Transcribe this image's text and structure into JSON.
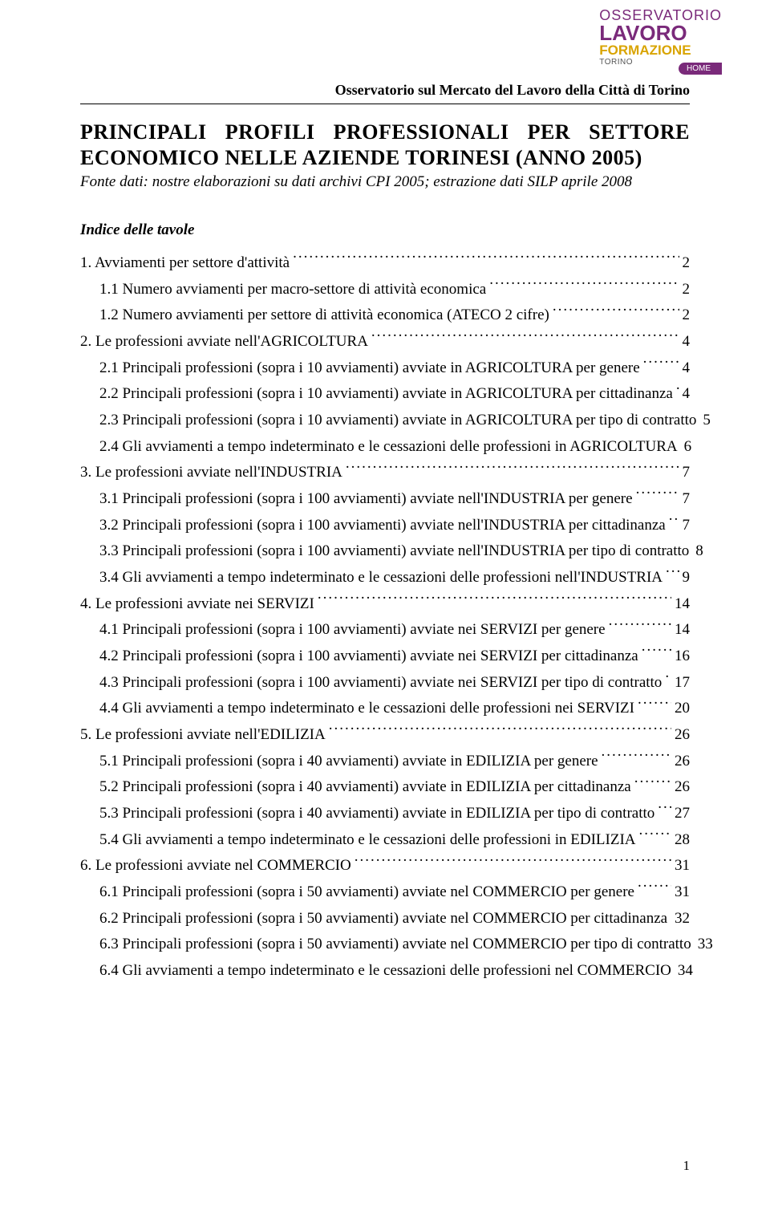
{
  "logo": {
    "line1": "OSSERVATORIO",
    "line2": "LAVORO",
    "line3": "FORMAZIONE",
    "torino": "TORINO"
  },
  "home_label": "HOME",
  "subheader": "Osservatorio sul Mercato del Lavoro della Città di Torino",
  "title_line1": "PRINCIPALI PROFILI PROFESSIONALI PER SETTORE",
  "title_line2": "ECONOMICO NELLE AZIENDE TORINESI (ANNO 2005)",
  "source": "Fonte dati: nostre elaborazioni su dati archivi CPI 2005; estrazione dati SILP aprile 2008",
  "toc_heading": "Indice delle tavole",
  "toc": [
    {
      "label": "1. Avviamenti per settore d'attività",
      "page": "2",
      "indent": false
    },
    {
      "label": "1.1 Numero avviamenti per macro-settore di attività economica",
      "page": "2",
      "indent": true
    },
    {
      "label": "1.2 Numero avviamenti per settore di attività economica (ATECO 2 cifre)",
      "page": "2",
      "indent": true
    },
    {
      "label": "2. Le professioni avviate nell'AGRICOLTURA",
      "page": "4",
      "indent": false
    },
    {
      "label": "2.1 Principali professioni (sopra i 10 avviamenti) avviate in AGRICOLTURA per genere",
      "page": "4",
      "indent": true
    },
    {
      "label": "2.2 Principali professioni (sopra i 10 avviamenti) avviate in AGRICOLTURA per cittadinanza",
      "page": "4",
      "indent": true
    },
    {
      "label": "2.3 Principali professioni (sopra i 10 avviamenti) avviate in AGRICOLTURA per tipo di contratto",
      "page": "5",
      "indent": true
    },
    {
      "label": "2.4 Gli avviamenti a tempo indeterminato e le cessazioni delle professioni in AGRICOLTURA",
      "page": "6",
      "indent": true
    },
    {
      "label": "3. Le professioni avviate nell'INDUSTRIA",
      "page": "7",
      "indent": false
    },
    {
      "label": "3.1 Principali professioni (sopra i 100 avviamenti) avviate nell'INDUSTRIA per genere",
      "page": "7",
      "indent": true
    },
    {
      "label": "3.2 Principali professioni (sopra i 100 avviamenti) avviate nell'INDUSTRIA per cittadinanza",
      "page": "7",
      "indent": true
    },
    {
      "label": "3.3 Principali professioni (sopra i 100 avviamenti) avviate nell'INDUSTRIA per tipo di contratto",
      "page": "8",
      "indent": true
    },
    {
      "label": "3.4 Gli avviamenti a tempo indeterminato e le cessazioni delle professioni nell'INDUSTRIA",
      "page": "9",
      "indent": true
    },
    {
      "label": "4. Le professioni avviate nei SERVIZI",
      "page": "14",
      "indent": false
    },
    {
      "label": "4.1 Principali professioni (sopra i 100 avviamenti) avviate nei SERVIZI per genere",
      "page": "14",
      "indent": true
    },
    {
      "label": "4.2 Principali professioni (sopra i 100 avviamenti) avviate nei SERVIZI per cittadinanza",
      "page": "16",
      "indent": true
    },
    {
      "label": "4.3 Principali professioni (sopra i 100 avviamenti) avviate nei SERVIZI per tipo di contratto",
      "page": "17",
      "indent": true
    },
    {
      "label": "4.4 Gli avviamenti a tempo indeterminato e le cessazioni delle professioni nei SERVIZI",
      "page": "20",
      "indent": true
    },
    {
      "label": "5. Le professioni avviate nell'EDILIZIA",
      "page": "26",
      "indent": false
    },
    {
      "label": "5.1 Principali professioni (sopra i 40 avviamenti) avviate in EDILIZIA per genere",
      "page": "26",
      "indent": true
    },
    {
      "label": "5.2 Principali professioni (sopra i 40 avviamenti) avviate in EDILIZIA per cittadinanza",
      "page": "26",
      "indent": true
    },
    {
      "label": "5.3 Principali professioni (sopra i 40 avviamenti) avviate in EDILIZIA per tipo di contratto",
      "page": "27",
      "indent": true
    },
    {
      "label": "5.4 Gli avviamenti a tempo indeterminato e le cessazioni delle professioni in EDILIZIA",
      "page": "28",
      "indent": true
    },
    {
      "label": "6. Le professioni avviate nel COMMERCIO",
      "page": "31",
      "indent": false
    },
    {
      "label": "6.1 Principali professioni (sopra i 50 avviamenti) avviate nel COMMERCIO per genere",
      "page": "31",
      "indent": true
    },
    {
      "label": "6.2 Principali professioni (sopra i 50 avviamenti) avviate nel COMMERCIO per cittadinanza",
      "page": "32",
      "indent": true
    },
    {
      "label": "6.3 Principali professioni (sopra i 50 avviamenti) avviate nel COMMERCIO per tipo di contratto",
      "page": "33",
      "indent": true
    },
    {
      "label": "6.4 Gli avviamenti a tempo indeterminato e le cessazioni delle professioni nel COMMERCIO",
      "page": "34",
      "indent": true
    }
  ],
  "page_number": "1"
}
